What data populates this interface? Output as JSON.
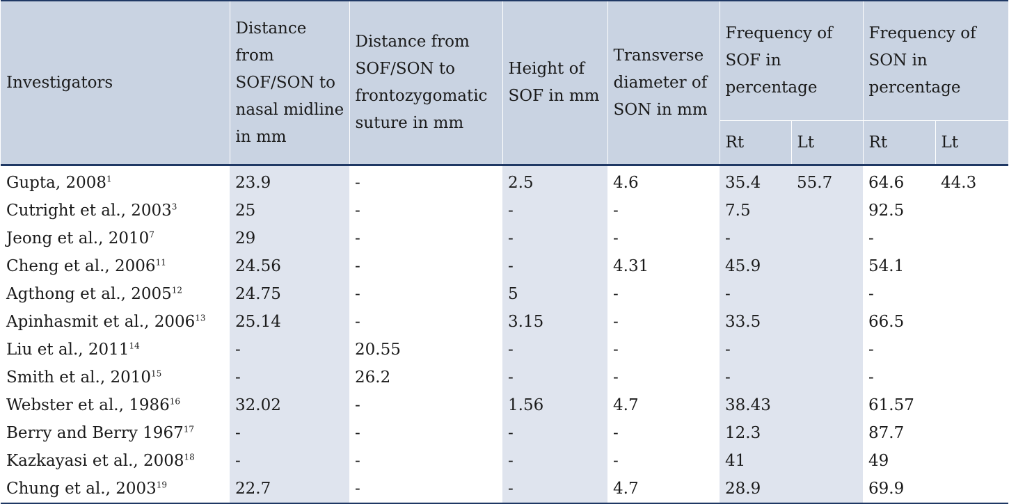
{
  "table": {
    "headers": {
      "investigators": "Investigators",
      "nasal_midline": "Distance from SOF/SON to nasal midline in mm",
      "frontozygomatic": "Distance from SOF/SON to frontozygomatic suture in mm",
      "height_sof": "Height of SOF in mm",
      "transverse_son": "Transverse diameter of SON in mm",
      "freq_sof": "Frequency of SOF in percentage",
      "freq_son": "Frequency of SON in percentage",
      "sof_rt": "Rt",
      "sof_lt": "Lt",
      "son_rt": "Rt",
      "son_lt": "Lt"
    },
    "rows": [
      {
        "name": "Gupta, 2008",
        "ref": "1",
        "nasal": "23.9",
        "fz": "-",
        "height": "2.5",
        "trans": "4.6",
        "sof_rt": "35.4",
        "sof_lt": "55.7",
        "son_rt": "64.6",
        "son_lt": "44.3"
      },
      {
        "name": "Cutright et al., 2003",
        "ref": "3",
        "nasal": "25",
        "fz": "-",
        "height": "-",
        "trans": "-",
        "sof_rt": "7.5",
        "sof_lt": "",
        "son_rt": "92.5",
        "son_lt": ""
      },
      {
        "name": "Jeong et al., 2010",
        "ref": "7",
        "nasal": "29",
        "fz": "-",
        "height": "-",
        "trans": "-",
        "sof_rt": "-",
        "sof_lt": "",
        "son_rt": "-",
        "son_lt": ""
      },
      {
        "name": "Cheng et al., 2006",
        "ref": "11",
        "nasal": "24.56",
        "fz": "-",
        "height": "-",
        "trans": "4.31",
        "sof_rt": "45.9",
        "sof_lt": "",
        "son_rt": "54.1",
        "son_lt": ""
      },
      {
        "name": "Agthong et al., 2005",
        "ref": "12",
        "nasal": "24.75",
        "fz": "-",
        "height": "5",
        "trans": "-",
        "sof_rt": "-",
        "sof_lt": "",
        "son_rt": "-",
        "son_lt": ""
      },
      {
        "name": "Apinhasmit et al., 2006",
        "ref": "13",
        "nasal": "25.14",
        "fz": "-",
        "height": "3.15",
        "trans": "-",
        "sof_rt": "33.5",
        "sof_lt": "",
        "son_rt": "66.5",
        "son_lt": ""
      },
      {
        "name": "Liu et al., 2011",
        "ref": "14",
        "nasal": "-",
        "fz": "20.55",
        "height": "-",
        "trans": "-",
        "sof_rt": "-",
        "sof_lt": "",
        "son_rt": "-",
        "son_lt": ""
      },
      {
        "name": "Smith et al., 2010",
        "ref": "15",
        "nasal": "-",
        "fz": "26.2",
        "height": "-",
        "trans": "-",
        "sof_rt": "-",
        "sof_lt": "",
        "son_rt": "-",
        "son_lt": ""
      },
      {
        "name": "Webster et al., 1986",
        "ref": "16",
        "nasal": "32.02",
        "fz": "-",
        "height": "1.56",
        "trans": "4.7",
        "sof_rt": "38.43",
        "sof_lt": "",
        "son_rt": "61.57",
        "son_lt": ""
      },
      {
        "name": "Berry and Berry 1967",
        "ref": "17",
        "nasal": "-",
        "fz": "-",
        "height": "-",
        "trans": "-",
        "sof_rt": "12.3",
        "sof_lt": "",
        "son_rt": "87.7",
        "son_lt": ""
      },
      {
        "name": "Kazkayasi et al., 2008",
        "ref": "18",
        "nasal": "-",
        "fz": "-",
        "height": "-",
        "trans": "-",
        "sof_rt": "41",
        "sof_lt": "",
        "son_rt": "49",
        "son_lt": ""
      },
      {
        "name": "Chung et al., 2003",
        "ref": "19",
        "nasal": "22.7",
        "fz": "-",
        "height": "-",
        "trans": "4.7",
        "sof_rt": "28.9",
        "sof_lt": "",
        "son_rt": "69.9",
        "son_lt": ""
      }
    ]
  }
}
